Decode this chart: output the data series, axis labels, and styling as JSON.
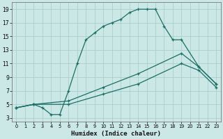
{
  "xlabel": "Humidex (Indice chaleur)",
  "background_color": "#cce8e6",
  "grid_color": "#aacfcd",
  "line_color": "#1a6e65",
  "xlim": [
    -0.5,
    23.5
  ],
  "ylim": [
    2.5,
    20.0
  ],
  "xticks": [
    0,
    1,
    2,
    3,
    4,
    5,
    6,
    7,
    8,
    9,
    10,
    11,
    12,
    13,
    14,
    15,
    16,
    17,
    18,
    19,
    20,
    21,
    22,
    23
  ],
  "yticks": [
    3,
    5,
    7,
    9,
    11,
    13,
    15,
    17,
    19
  ],
  "series1_x": [
    0,
    2,
    3,
    4,
    5,
    6,
    7,
    8,
    9,
    10,
    11,
    12,
    13,
    14,
    15,
    16,
    17,
    18,
    19,
    21,
    23
  ],
  "series1_y": [
    4.5,
    5.0,
    4.5,
    3.5,
    3.5,
    7.0,
    11.0,
    14.5,
    15.5,
    16.5,
    17.0,
    17.5,
    18.5,
    19.0,
    19.0,
    19.0,
    16.5,
    14.5,
    14.5,
    10.5,
    8.0
  ],
  "series2_x": [
    0,
    2,
    6,
    10,
    14,
    19,
    21,
    23
  ],
  "series2_y": [
    4.5,
    5.0,
    5.5,
    7.5,
    9.5,
    12.5,
    10.5,
    8.0
  ],
  "series3_x": [
    0,
    2,
    6,
    10,
    14,
    19,
    21,
    23
  ],
  "series3_y": [
    4.5,
    5.0,
    5.0,
    6.5,
    8.0,
    11.0,
    10.0,
    7.5
  ]
}
